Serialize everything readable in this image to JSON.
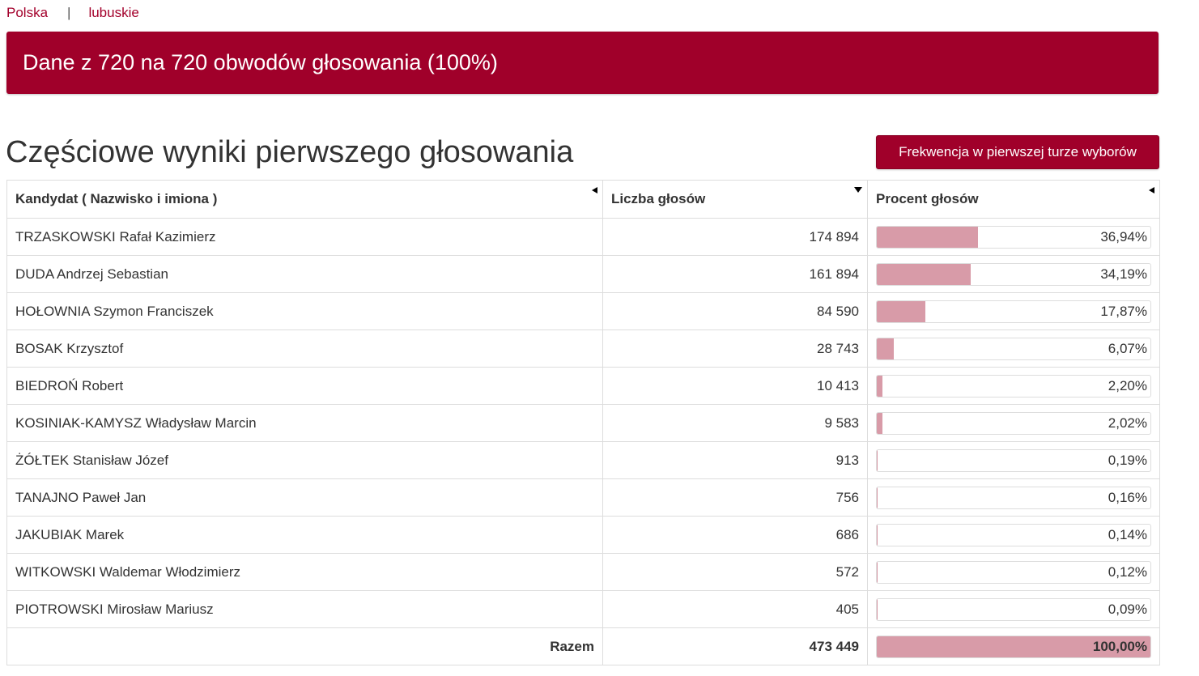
{
  "breadcrumb": {
    "country": "Polska",
    "separator": "|",
    "region": "lubuskie"
  },
  "banner": {
    "text": "Dane z 720 na 720 obwodów głosowania (100%)"
  },
  "section": {
    "title": "Częściowe wyniki pierwszego głosowania",
    "turnout_button": "Frekwencja w pierwszej turze wyborów"
  },
  "table": {
    "headers": {
      "candidate": "Kandydat ( Nazwisko i imiona )",
      "votes": "Liczba głosów",
      "percent": "Procent głosów"
    },
    "rows": [
      {
        "name": "TRZASKOWSKI Rafał Kazimierz",
        "votes": "174 894",
        "percent": "36,94%",
        "share": 0.3694
      },
      {
        "name": "DUDA Andrzej Sebastian",
        "votes": "161 894",
        "percent": "34,19%",
        "share": 0.3419
      },
      {
        "name": "HOŁOWNIA Szymon Franciszek",
        "votes": "84 590",
        "percent": "17,87%",
        "share": 0.1787
      },
      {
        "name": "BOSAK Krzysztof",
        "votes": "28 743",
        "percent": "6,07%",
        "share": 0.0607
      },
      {
        "name": "BIEDROŃ Robert",
        "votes": "10 413",
        "percent": "2,20%",
        "share": 0.022
      },
      {
        "name": "KOSINIAK-KAMYSZ Władysław Marcin",
        "votes": "9 583",
        "percent": "2,02%",
        "share": 0.0202
      },
      {
        "name": "ŻÓŁTEK Stanisław Józef",
        "votes": "913",
        "percent": "0,19%",
        "share": 0.0019
      },
      {
        "name": "TANAJNO Paweł Jan",
        "votes": "756",
        "percent": "0,16%",
        "share": 0.0016
      },
      {
        "name": "JAKUBIAK Marek",
        "votes": "686",
        "percent": "0,14%",
        "share": 0.0014
      },
      {
        "name": "WITKOWSKI Waldemar Włodzimierz",
        "votes": "572",
        "percent": "0,12%",
        "share": 0.0012
      },
      {
        "name": "PIOTROWSKI Mirosław Mariusz",
        "votes": "405",
        "percent": "0,09%",
        "share": 0.0009
      }
    ],
    "total": {
      "label": "Razem",
      "votes": "473 449",
      "percent": "100,00%",
      "share": 1.0
    }
  },
  "colors": {
    "brand": "#a0002a",
    "bar_fill": "#d89ba8",
    "link": "#a3002b",
    "border": "#dddddd"
  },
  "icons": {
    "sort_candidate": "sort-left-icon",
    "sort_votes": "sort-down-icon",
    "sort_percent": "sort-left-icon"
  }
}
